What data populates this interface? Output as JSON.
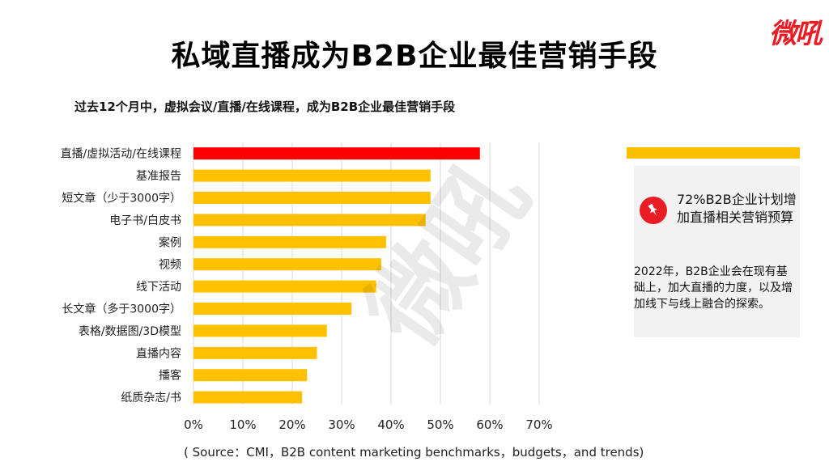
{
  "page": {
    "title": "私域直播成为B2B企业最佳营销手段",
    "logo_text": "微吼",
    "watermark_text": "微吼",
    "source": "( Source：CMI，B2B content marketing benchmarks，budgets，and trends)"
  },
  "panel": {
    "highlight": "72%B2B企业计划增加直播相关营销预算",
    "body": "2022年，B2B企业会在现有基础上，加大直播的力度，以及增加线下与线上融合的探索。",
    "icon": "pushpin-icon",
    "accent_color": "#fbbf00",
    "icon_color": "#ea1d25"
  },
  "chart_data": {
    "type": "bar",
    "orientation": "horizontal",
    "title": "过去12个月中，虚拟会议/直播/在线课程，成为B2B企业最佳营销手段",
    "categories": [
      "直播/虚拟活动/在线课程",
      "基准报告",
      "短文章（少于3000字）",
      "电子书/白皮书",
      "案例",
      "视频",
      "线下活动",
      "长文章（多于3000字）",
      "表格/数据图/3D模型",
      "直播内容",
      "播客",
      "纸质杂志/书"
    ],
    "values": [
      58,
      48,
      48,
      47,
      39,
      38,
      37,
      32,
      27,
      25,
      23,
      22
    ],
    "highlight_index": 0,
    "highlight_color": "#ff0000",
    "bar_color": "#ffc000",
    "xlim": [
      0,
      70
    ],
    "xticks": [
      "0%",
      "10%",
      "20%",
      "30%",
      "40%",
      "50%",
      "60%",
      "70%"
    ],
    "grid": true,
    "xlabel": "",
    "ylabel": ""
  }
}
